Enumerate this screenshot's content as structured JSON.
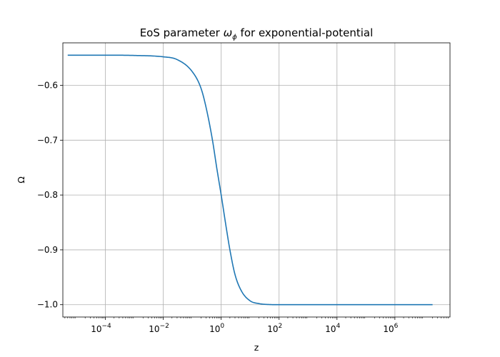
{
  "chart_data": {
    "type": "line",
    "title_prefix": "EoS parameter ",
    "title_symbol": "ω",
    "title_subscript": "ϕ",
    "title_suffix": " for exponential-potential",
    "xlabel": "z",
    "ylabel": "Ω",
    "xscale": "log",
    "xlim": [
      3.4e-06,
      80000000.0
    ],
    "ylim": [
      -1.0225,
      -0.5225
    ],
    "grid": true,
    "x_ticks": [
      {
        "base": "10",
        "exp": "−4",
        "value": 0.0001
      },
      {
        "base": "10",
        "exp": "−2",
        "value": 0.01
      },
      {
        "base": "10",
        "exp": "0",
        "value": 1
      },
      {
        "base": "10",
        "exp": "2",
        "value": 100
      },
      {
        "base": "10",
        "exp": "4",
        "value": 10000
      },
      {
        "base": "10",
        "exp": "6",
        "value": 1000000
      }
    ],
    "y_ticks": [
      {
        "label": "−0.6",
        "value": -0.6
      },
      {
        "label": "−0.7",
        "value": -0.7
      },
      {
        "label": "−0.8",
        "value": -0.8
      },
      {
        "label": "−0.9",
        "value": -0.9
      },
      {
        "label": "−1.0",
        "value": -1.0
      }
    ],
    "series": [
      {
        "color": "#1f77b4",
        "x": [
          5e-06,
          0.0001,
          0.001,
          0.01,
          0.03,
          0.1,
          0.2,
          0.3,
          0.5,
          0.7,
          1,
          1.5,
          2,
          3,
          5,
          10,
          20,
          50,
          100,
          1000,
          10000,
          100000,
          1000000,
          10000000,
          20000000
        ],
        "y": [
          -0.545,
          -0.545,
          -0.5455,
          -0.548,
          -0.553,
          -0.575,
          -0.605,
          -0.64,
          -0.7,
          -0.75,
          -0.8,
          -0.86,
          -0.9,
          -0.945,
          -0.975,
          -0.993,
          -0.998,
          -0.9998,
          -1.0,
          -1.0,
          -1.0,
          -1.0,
          -1.0,
          -1.0,
          -1.0
        ]
      }
    ]
  },
  "colors": {
    "line": "#1f77b4",
    "grid": "#b0b0b0",
    "axes": "#000000"
  }
}
